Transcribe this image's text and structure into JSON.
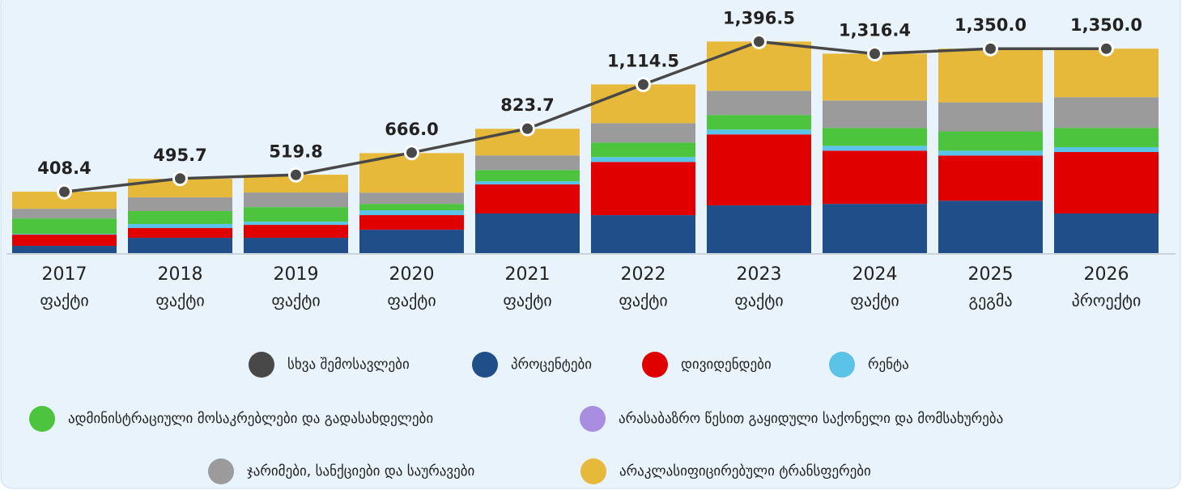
{
  "chart_data": {
    "type": "stacked-bar-line",
    "categories": [
      [
        "2017",
        "ფაქტი"
      ],
      [
        "2018",
        "ფაქტი"
      ],
      [
        "2019",
        "ფაქტი"
      ],
      [
        "2020",
        "ფაქტი"
      ],
      [
        "2021",
        "ფაქტი"
      ],
      [
        "2022",
        "ფაქტი"
      ],
      [
        "2023",
        "ფაქტი"
      ],
      [
        "2024",
        "ფაქტი"
      ],
      [
        "2025",
        "გეგმა"
      ],
      [
        "2026",
        "პროექტი"
      ]
    ],
    "ylim": [
      0,
      1500
    ],
    "line": {
      "name": "სხვა შემოსავლები",
      "color": "#484848",
      "values": [
        408.4,
        495.7,
        519.8,
        666.0,
        823.7,
        1114.5,
        1396.5,
        1316.4,
        1350.0,
        1350.0
      ],
      "value_labels": [
        "408.4",
        "495.7",
        "519.8",
        "666.0",
        "823.7",
        "1,114.5",
        "1,396.5",
        "1,316.4",
        "1,350.0",
        "1,350.0"
      ]
    },
    "series": [
      {
        "name": "პროცენტები",
        "color": "#1f4e89",
        "values": [
          53,
          106,
          106,
          159,
          266,
          255,
          319,
          329,
          350,
          266
        ]
      },
      {
        "name": "დივიდენდები",
        "color": "#e00000",
        "values": [
          74,
          64,
          85,
          96,
          191,
          350,
          467,
          350,
          297,
          404
        ]
      },
      {
        "name": "რენტა",
        "color": "#5bc3e8",
        "values": [
          5,
          27,
          21,
          32,
          21,
          32,
          32,
          32,
          32,
          32
        ]
      },
      {
        "name": "ადმინისტრაციული მოსაკრებლები და გადასახდელები",
        "color": "#4cc43e",
        "values": [
          101,
          85,
          96,
          42,
          74,
          96,
          96,
          117,
          127,
          127
        ]
      },
      {
        "name": "არასაბაზრო წესით გაყიდული საქონელი და მომსახურება",
        "color": "#a98de0",
        "values": [
          0,
          0,
          0,
          0,
          0,
          0,
          0,
          0,
          0,
          0
        ]
      },
      {
        "name": "ჯარიმები, სანქციები და საურავები",
        "color": "#9b9b9b",
        "values": [
          64,
          90,
          96,
          74,
          96,
          127,
          159,
          181,
          191,
          202
        ]
      },
      {
        "name": "არაკლასიფიცირებული ტრანსფერები",
        "color": "#e6b93a",
        "values": [
          112,
          122,
          117,
          260,
          175,
          255,
          324,
          308,
          353,
          319
        ]
      }
    ]
  }
}
